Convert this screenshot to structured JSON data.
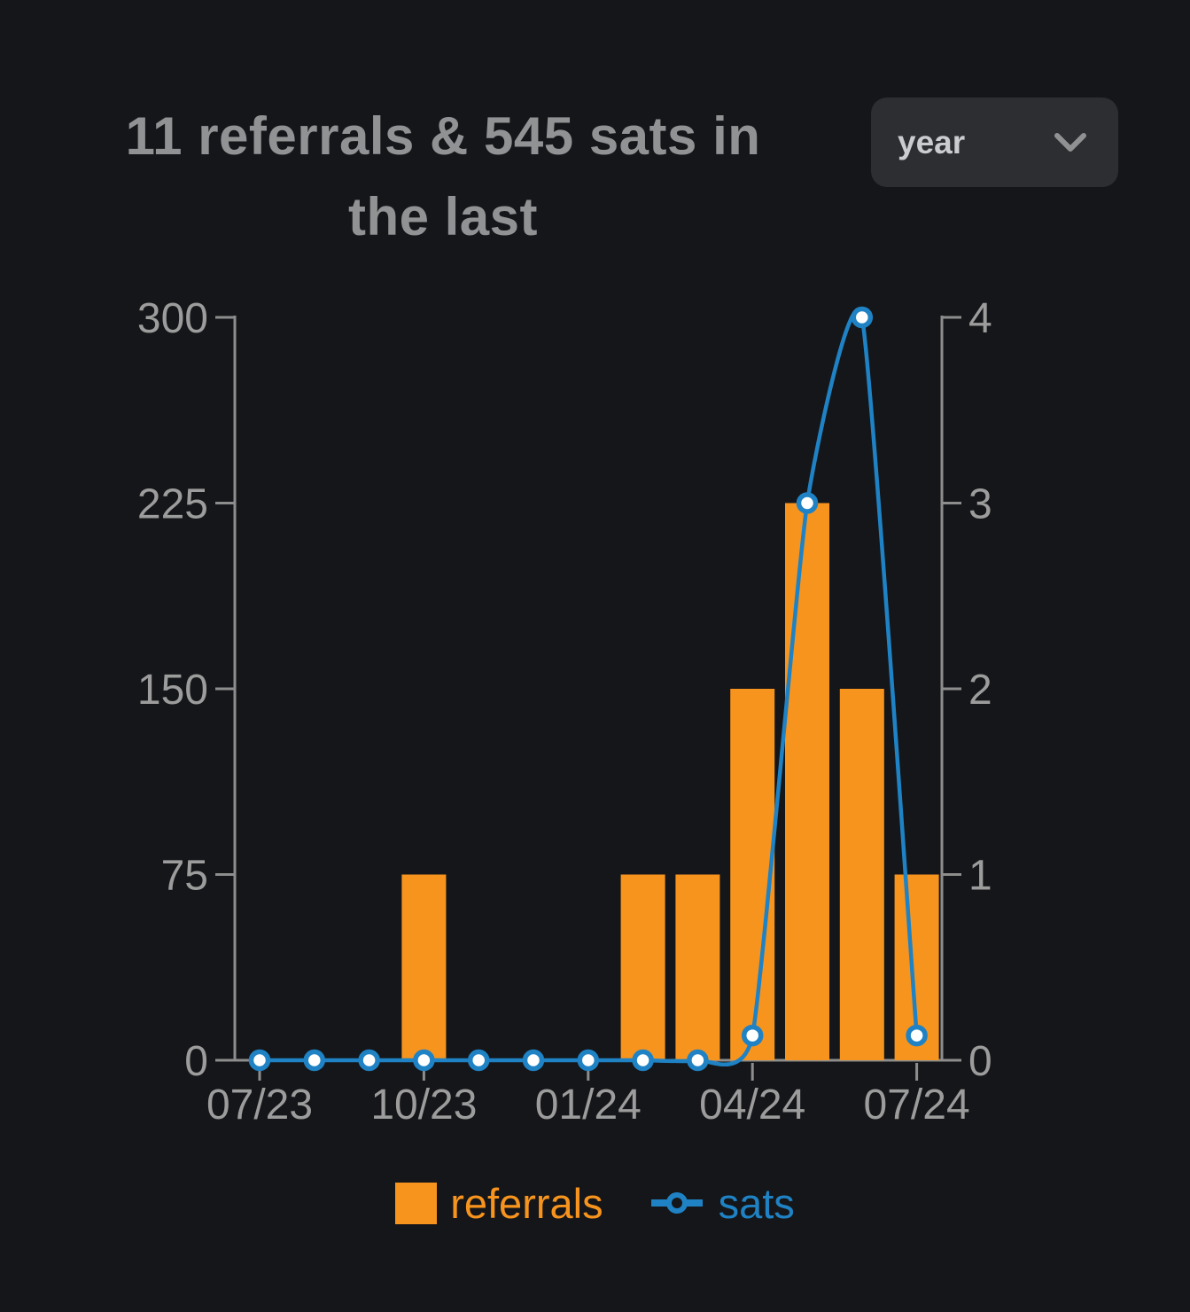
{
  "colors": {
    "background": "#151619",
    "referrals": "#f7941e",
    "sats": "#1f82c4",
    "axis": "#8d8d8d",
    "tick_label": "#9c9c9c",
    "title": "#909294",
    "select_bg": "#2d2e31",
    "select_text": "#cacccf",
    "marker_fill": "#ffffff"
  },
  "header": {
    "title_line1": "11 referrals & 545 sats in",
    "title_line2": "the last",
    "range_select": {
      "value": "year",
      "icon": "chevron-down"
    }
  },
  "legend": {
    "referrals_label": "referrals",
    "sats_label": "sats"
  },
  "chart_data": {
    "type": "bar+line",
    "title": "11 referrals & 545 sats in the last year",
    "point_count": 13,
    "x_ticks": [
      {
        "index": 0,
        "label": "07/23"
      },
      {
        "index": 3,
        "label": "10/23"
      },
      {
        "index": 6,
        "label": "01/24"
      },
      {
        "index": 9,
        "label": "04/24"
      },
      {
        "index": 12,
        "label": "07/24"
      }
    ],
    "series": [
      {
        "name": "referrals",
        "type": "bar",
        "axis": "right",
        "color": "#f7941e",
        "values": [
          0,
          0,
          0,
          1,
          0,
          0,
          0,
          1,
          1,
          2,
          3,
          2,
          1
        ],
        "total": 11
      },
      {
        "name": "sats",
        "type": "line",
        "axis": "left",
        "color": "#1f82c4",
        "values": [
          0,
          0,
          0,
          0,
          0,
          0,
          0,
          0,
          0,
          10,
          225,
          300,
          10
        ],
        "total": 545
      }
    ],
    "left_axis": {
      "ticks": [
        0,
        75,
        150,
        225,
        300
      ],
      "max": 300
    },
    "right_axis": {
      "ticks": [
        0,
        1,
        2,
        3,
        4
      ],
      "max": 4
    },
    "grid": false,
    "legend_position": "bottom"
  }
}
